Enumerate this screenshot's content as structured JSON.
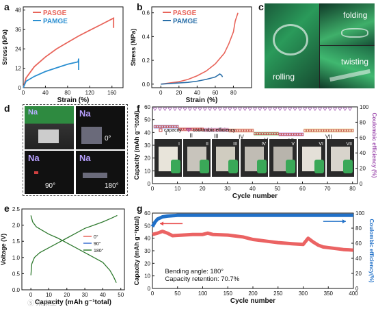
{
  "panels": {
    "a": {
      "letter": "a"
    },
    "b": {
      "letter": "b"
    },
    "c": {
      "letter": "c",
      "labels": [
        "folding",
        "twisting",
        "rolling"
      ]
    },
    "d": {
      "letter": "d",
      "photo_labels": [
        "0°",
        "90°",
        "180°"
      ],
      "ion": "Na"
    },
    "e": {
      "letter": "e"
    },
    "f": {
      "letter": "f",
      "segment_labels": [
        "I",
        "II",
        "III",
        "IV",
        "V",
        "VI",
        "VII"
      ],
      "legend_capacity": "capacity",
      "legend_ce": "coulombic efficiency"
    },
    "g": {
      "letter": "g",
      "annotation_angle": "Bending angle: 180°",
      "annotation_retention": "Capacity retention: 70.7%"
    }
  },
  "chart_data": [
    {
      "id": "a",
      "type": "line",
      "xlabel": "Strain (%)",
      "ylabel": "Stress (kPa)",
      "xlim": [
        0,
        180
      ],
      "ylim": [
        0,
        50
      ],
      "xticks": [
        0,
        40,
        80,
        120,
        160
      ],
      "yticks": [
        0,
        12,
        24,
        36,
        48
      ],
      "series": [
        {
          "name": "PASGE",
          "color": "#e8645a",
          "x": [
            0,
            5,
            20,
            40,
            60,
            80,
            100,
            120,
            140,
            160,
            163,
            163
          ],
          "y": [
            0,
            6,
            13,
            19,
            24,
            28,
            32,
            35.5,
            39,
            42.5,
            43,
            37
          ]
        },
        {
          "name": "PAMGE",
          "color": "#2b8fd1",
          "x": [
            0,
            5,
            20,
            40,
            60,
            80,
            99,
            100,
            100
          ],
          "y": [
            0,
            4,
            7,
            10,
            12.3,
            14.5,
            16,
            18,
            11
          ]
        }
      ]
    },
    {
      "id": "b",
      "type": "line",
      "xlabel": "Strain (%)",
      "ylabel": "Stress (MPa)",
      "xlim": [
        -10,
        100
      ],
      "ylim": [
        -0.03,
        0.65
      ],
      "xticks": [
        0,
        20,
        40,
        60,
        80
      ],
      "yticks": [
        0.0,
        0.2,
        0.4,
        0.6
      ],
      "series": [
        {
          "name": "PASGE",
          "color": "#e8645a",
          "x": [
            0,
            10,
            20,
            30,
            40,
            50,
            60,
            70,
            75,
            80,
            82,
            85
          ],
          "y": [
            0,
            0.01,
            0.02,
            0.04,
            0.07,
            0.11,
            0.17,
            0.26,
            0.34,
            0.44,
            0.53,
            0.6
          ]
        },
        {
          "name": "PAMGE",
          "color": "#2a6fa8",
          "x": [
            0,
            10,
            20,
            30,
            40,
            50,
            55,
            60,
            63,
            65,
            67,
            68
          ],
          "y": [
            0,
            0.005,
            0.01,
            0.015,
            0.025,
            0.04,
            0.05,
            0.06,
            0.075,
            0.085,
            0.075,
            0.06
          ]
        }
      ]
    },
    {
      "id": "e",
      "type": "line",
      "xlabel": "Capacity (mAh g⁻¹total)",
      "ylabel": "Voltage (V)",
      "xlim": [
        -5,
        52
      ],
      "ylim": [
        0,
        2.5
      ],
      "xticks": [
        0,
        10,
        20,
        30,
        40,
        50
      ],
      "yticks": [
        0.0,
        0.5,
        1.0,
        1.5,
        2.0,
        2.5
      ],
      "series": [
        {
          "name": "0°",
          "color": "#e8645a"
        },
        {
          "name": "90°",
          "color": "#3b6fd1"
        },
        {
          "name": "180°",
          "color": "#2f7a2f"
        }
      ],
      "charge_x": [
        0,
        0.5,
        2,
        5,
        10,
        15,
        20,
        25,
        30,
        35,
        40,
        45,
        48
      ],
      "charge_y": [
        0.45,
        0.8,
        1.0,
        1.15,
        1.3,
        1.45,
        1.6,
        1.75,
        1.9,
        2.0,
        2.1,
        2.22,
        2.3
      ],
      "discharge_x": [
        0,
        1,
        3,
        6,
        10,
        15,
        20,
        25,
        30,
        35,
        40,
        44,
        46,
        47.5
      ],
      "discharge_y": [
        2.3,
        2.1,
        1.95,
        1.85,
        1.72,
        1.6,
        1.45,
        1.3,
        1.15,
        1.0,
        0.85,
        0.6,
        0.4,
        0.22
      ]
    },
    {
      "id": "f",
      "type": "scatter",
      "xlabel": "Cycle number",
      "ylabel": "Capacity (mAh g⁻¹total)",
      "y2label": "Coulombic efficiency (%)",
      "xlim": [
        0,
        82
      ],
      "ylim": [
        0,
        60
      ],
      "y2lim": [
        0,
        100
      ],
      "xticks": [
        0,
        10,
        20,
        30,
        40,
        50,
        60,
        70,
        80
      ],
      "yticks": [
        0,
        10,
        20,
        30,
        40,
        50,
        60
      ],
      "y2ticks": [
        0,
        20,
        40,
        60,
        80,
        100
      ],
      "segments": [
        {
          "label": "I",
          "start": 1,
          "end": 10,
          "capacity": 44.5,
          "color": "#a8a8e8"
        },
        {
          "label": "II",
          "start": 11,
          "end": 20,
          "capacity": 42.5,
          "color": "#e8a0a0"
        },
        {
          "label": "III",
          "start": 21,
          "end": 30,
          "capacity": 42,
          "color": "#c8a0d8"
        },
        {
          "label": "IV",
          "start": 31,
          "end": 40,
          "capacity": 41.5,
          "color": "#f0b890"
        },
        {
          "label": "V",
          "start": 41,
          "end": 50,
          "capacity": 39,
          "color": "#90d890"
        },
        {
          "label": "VI",
          "start": 51,
          "end": 60,
          "capacity": 38.5,
          "color": "#c8a0e8"
        },
        {
          "label": "VII",
          "start": 61,
          "end": 80,
          "capacity": 41.5,
          "color": "#f0d890"
        }
      ],
      "ce": 97,
      "ce_color": "#a050b0"
    },
    {
      "id": "g",
      "type": "scatter",
      "xlabel": "Cycle number",
      "ylabel": "Capacity (mAh g⁻¹total)",
      "y2label": "Coulombic efficiency(%)",
      "xlim": [
        0,
        400
      ],
      "ylim": [
        0,
        60
      ],
      "y2lim": [
        0,
        100
      ],
      "xticks": [
        0,
        50,
        100,
        150,
        200,
        250,
        300,
        350,
        400
      ],
      "yticks": [
        0,
        10,
        20,
        30,
        40,
        50,
        60
      ],
      "y2ticks": [
        0,
        20,
        40,
        60,
        80,
        100
      ],
      "capacity_x": [
        0,
        10,
        20,
        30,
        40,
        60,
        80,
        100,
        110,
        120,
        150,
        180,
        200,
        230,
        250,
        280,
        300,
        310,
        320,
        330,
        340,
        360,
        380,
        400
      ],
      "capacity_y": [
        43,
        44,
        45.5,
        44,
        42,
        42.5,
        43,
        43,
        44,
        43,
        42.5,
        41,
        39,
        37.5,
        36.5,
        35.5,
        35,
        40,
        37,
        34.5,
        33,
        32,
        31,
        30.5
      ],
      "ce_x": [
        0,
        5,
        10,
        20,
        30,
        50,
        100,
        200,
        300,
        400
      ],
      "ce_y": [
        82,
        88,
        92,
        95,
        96,
        97,
        97,
        97,
        97,
        97
      ],
      "capacity_color": "#e84848",
      "ce_color": "#2070c8"
    }
  ],
  "watermark": "Ⓢ 未来工"
}
